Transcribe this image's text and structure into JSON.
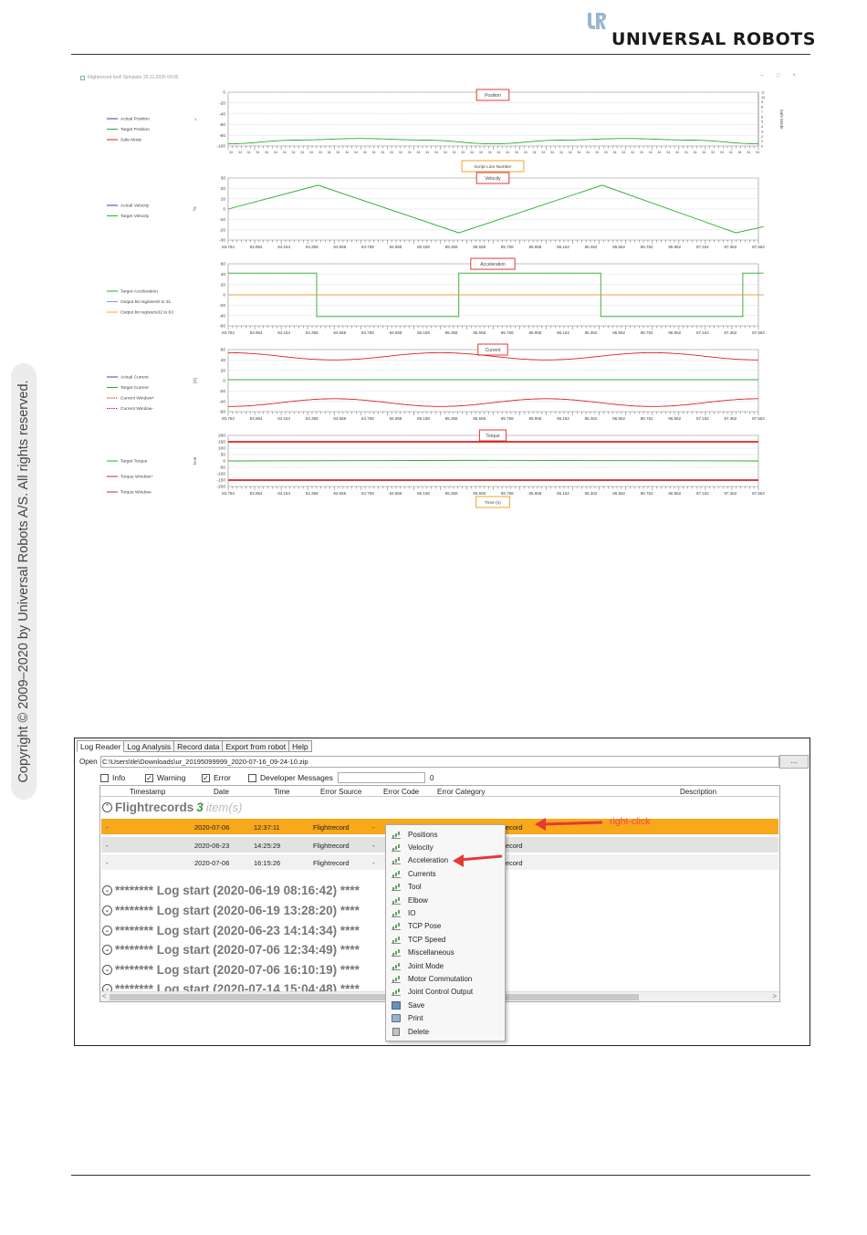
{
  "header": {
    "logo_mark": "UR",
    "brand": "UNIVERSAL ROBOTS"
  },
  "side_note": "Copyright © 2009–2020 by Universal Robots A/S. All rights reserved.",
  "colors": {
    "selection": "#f7a81b",
    "annotation_red": "#e53935",
    "annotation_orange": "#f3b54a",
    "actual": "#2a3fd0",
    "target": "#2eaa2e",
    "limit": "#e02020",
    "bits": "#f0a040"
  },
  "flightrecord_window": {
    "title": "Flightrecord tool\\ Simulator 26.11.2020 09:05",
    "controls": [
      "–",
      "□",
      "×"
    ],
    "plots": [
      {
        "id": "position",
        "title": "Position",
        "legend": [
          "Actual Position",
          "Target Position",
          "Safe Mode"
        ],
        "y_ticks": [
          "0",
          "-20",
          "-40",
          "-60",
          "-80",
          "-100"
        ],
        "right_axis_label": "Safe Mode",
        "right_ticks": [
          "11",
          "10",
          "9",
          "8",
          "7",
          "6",
          "5",
          "4",
          "3",
          "2",
          "1",
          "0"
        ],
        "x_label": "Script Line Number",
        "x_tick_value": "34"
      },
      {
        "id": "velocity",
        "title": "Velocity",
        "legend": [
          "Actual Velocity",
          "Target Velocity"
        ],
        "y_unit": "°/s",
        "y_ticks": [
          "30",
          "20",
          "10",
          "0",
          "-10",
          "-20",
          "-30"
        ]
      },
      {
        "id": "acceleration",
        "title": "Acceleration",
        "legend": [
          "Target Acceleration",
          "Output bit registers0 to 31",
          "Output bit registers32 to 63"
        ],
        "y_ticks": [
          "60",
          "40",
          "20",
          "0",
          "-20",
          "-40",
          "-60"
        ]
      },
      {
        "id": "current",
        "title": "Current",
        "legend": [
          "Actual Current",
          "Target Current",
          "Current Window+",
          "Current Window-"
        ],
        "y_unit": "[A]",
        "y_ticks": [
          "60",
          "40",
          "20",
          "0",
          "-20",
          "-40",
          "-60"
        ]
      },
      {
        "id": "torque",
        "title": "Torque",
        "legend": [
          "Target Torque",
          "Torque Window+",
          "Torque Window-"
        ],
        "y_unit": "N·m",
        "y_ticks": [
          "200",
          "150",
          "100",
          "50",
          "0",
          "-50",
          "-100",
          "-150",
          "-200"
        ],
        "x_label": "Time (s)"
      }
    ],
    "time_ticks": [
      "83.754",
      "83.954",
      "84.154",
      "84.358",
      "84.558",
      "84.758",
      "84.958",
      "85.158",
      "85.358",
      "85.558",
      "85.758",
      "85.958",
      "86.162",
      "86.362",
      "86.562",
      "86.762",
      "86.962",
      "87.162",
      "87.362",
      "87.562"
    ]
  },
  "chart_data": [
    {
      "type": "line",
      "title": "Position",
      "ylim": [
        -100,
        0
      ],
      "series": [
        {
          "name": "Target Position",
          "x": [
            0,
            0.125,
            0.25,
            0.375,
            0.5,
            0.625,
            0.75,
            0.875,
            1.0
          ],
          "values": [
            -96,
            -89,
            -86,
            -89,
            -96,
            -89,
            -86,
            -89,
            -96
          ]
        }
      ]
    },
    {
      "type": "line",
      "title": "Velocity",
      "ylabel": "°/s",
      "ylim": [
        -30,
        30
      ],
      "series": [
        {
          "name": "Target Velocity",
          "x": [
            83.754,
            84.4,
            85.41,
            86.44,
            87.4,
            87.6
          ],
          "values": [
            0,
            23,
            -23,
            23,
            -23,
            -17
          ]
        }
      ]
    },
    {
      "type": "line",
      "title": "Acceleration",
      "ylim": [
        -60,
        60
      ],
      "series": [
        {
          "name": "Target Acceleration",
          "x": [
            83.754,
            84.39,
            84.39,
            85.41,
            85.41,
            86.43,
            86.43,
            87.45,
            87.45,
            87.6
          ],
          "values": [
            42,
            42,
            -42,
            -42,
            42,
            42,
            -42,
            -42,
            42,
            42
          ]
        },
        {
          "name": "Output bit registers32 to 63",
          "x": [
            83.754,
            87.6
          ],
          "values": [
            0,
            0
          ]
        }
      ]
    },
    {
      "type": "line",
      "title": "Current",
      "ylabel": "[A]",
      "ylim": [
        -60,
        60
      ],
      "series": [
        {
          "name": "Current Window+",
          "x": [
            0,
            0.2,
            0.4,
            0.6,
            0.8,
            1.0
          ],
          "values": [
            54,
            40,
            54,
            40,
            54,
            40
          ]
        },
        {
          "name": "Target Current",
          "x": [
            0,
            1.0
          ],
          "values": [
            2,
            2
          ]
        },
        {
          "name": "Current Window-",
          "x": [
            0,
            0.2,
            0.4,
            0.6,
            0.8,
            1.0
          ],
          "values": [
            -50,
            -35,
            -50,
            -35,
            -50,
            -35
          ]
        }
      ]
    },
    {
      "type": "line",
      "title": "Torque",
      "ylabel": "N·m",
      "ylim": [
        -200,
        200
      ],
      "series": [
        {
          "name": "Torque Window+",
          "x": [
            0,
            1.0
          ],
          "values": [
            150,
            150
          ]
        },
        {
          "name": "Target Torque",
          "x": [
            0,
            0.5,
            1.0
          ],
          "values": [
            0,
            5,
            0
          ]
        },
        {
          "name": "Torque Window-",
          "x": [
            0,
            1.0
          ],
          "values": [
            -150,
            -150
          ]
        }
      ]
    }
  ],
  "log_reader": {
    "tabs": [
      "Log Reader",
      "Log Analysis",
      "Record data",
      "Export from robot",
      "Help"
    ],
    "open_label": "Open",
    "open_path": "C:\\Users\\tle\\Downloads\\ur_20195099999_2020-07-16_09-24-10.zip",
    "browse_label": "...",
    "filters": [
      {
        "label": "Info",
        "checked": false
      },
      {
        "label": "Warning",
        "checked": true
      },
      {
        "label": "Error",
        "checked": true
      },
      {
        "label": "Developer Messages",
        "checked": false
      }
    ],
    "check_mark": "✓",
    "count": "0",
    "columns": [
      "Timestamp",
      "Date",
      "Time",
      "Error Source",
      "Error Code",
      "Error Category",
      "Description"
    ],
    "group": {
      "toggle": "⌃",
      "title": "Flightrecords",
      "count": "3",
      "items": "item(s)"
    },
    "rows": [
      {
        "timestamp": "-",
        "date": "2020-07-06",
        "time": "12:37:11",
        "source": "Flightrecord",
        "code": "-",
        "category": "Flightrecord"
      },
      {
        "timestamp": "-",
        "date": "2020-06-23",
        "time": "14:25:29",
        "source": "Flightrecord",
        "code": "-",
        "category": "Flightrecord"
      },
      {
        "timestamp": "-",
        "date": "2020-07-06",
        "time": "16:15:26",
        "source": "Flightrecord",
        "code": "-",
        "category": "Flightrecord"
      }
    ],
    "log_groups": [
      "******** Log start (2020-06-19 08:16:42) ****",
      "******** Log start (2020-06-19 13:28:20) ****",
      "******** Log start (2020-06-23 14:14:34) ****",
      "******** Log start (2020-07-06 12:34:49) ****",
      "******** Log start (2020-07-06 16:10:19) ****",
      "******** Log start (2020-07-14 15:04:48) ****"
    ],
    "log_toggle": "⌄",
    "scroll_left": "<",
    "scroll_right": ">",
    "context_menu": [
      "Positions",
      "Velocity",
      "Acceleration",
      "Currents",
      "Tool",
      "Elbow",
      "IO",
      "TCP Pose",
      "TCP Speed",
      "Miscellaneous",
      "Joint Mode",
      "Motor Commutation",
      "Joint Control Output",
      "Save",
      "Print",
      "Delete"
    ],
    "annotation": "right-click"
  }
}
